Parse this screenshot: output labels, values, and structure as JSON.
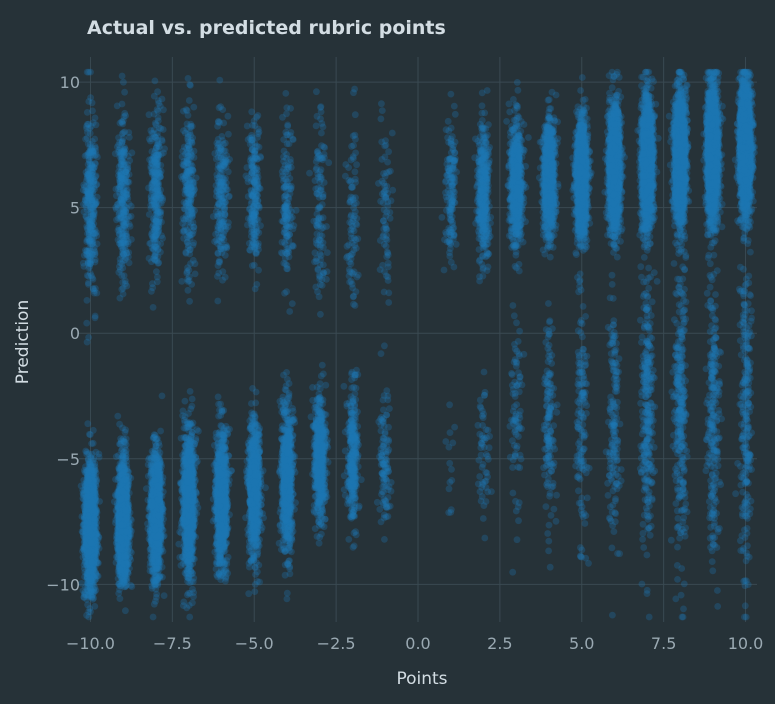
{
  "chart_data": {
    "type": "scatter",
    "title": "Actual vs. predicted rubric points",
    "xlabel": "Points",
    "ylabel": "Prediction",
    "xlim": [
      -10.35,
      10.35
    ],
    "ylim": [
      -11.5,
      11.0
    ],
    "x_ticks": [
      -10.0,
      -7.5,
      -5.0,
      -2.5,
      0.0,
      2.5,
      5.0,
      7.5,
      10.0
    ],
    "x_tick_labels": [
      "−10.0",
      "−7.5",
      "−5.0",
      "−2.5",
      "0.0",
      "2.5",
      "5.0",
      "7.5",
      "10.0"
    ],
    "y_ticks": [
      -10,
      -5,
      0,
      5,
      10
    ],
    "y_tick_labels": [
      "−10",
      "−5",
      "0",
      "5",
      "10"
    ],
    "grid": true,
    "colors": {
      "background": "#263238",
      "point": "#1f77b4",
      "grid": "#3a4a52",
      "tick_text": "#9aa9b2",
      "label_text": "#d3dde3"
    },
    "point_opacity": 0.3,
    "jitter": 0.2,
    "columns": [
      {
        "x": -10,
        "n": 1800,
        "clusters": [
          {
            "mean": -7.6,
            "sd": 1.2,
            "w": 0.82
          },
          {
            "mean": 5.2,
            "sd": 1.9,
            "w": 0.18
          }
        ]
      },
      {
        "x": -9,
        "n": 1500,
        "clusters": [
          {
            "mean": -7.4,
            "sd": 1.2,
            "w": 0.82
          },
          {
            "mean": 5.4,
            "sd": 1.8,
            "w": 0.18
          }
        ]
      },
      {
        "x": -8,
        "n": 1400,
        "clusters": [
          {
            "mean": -7.2,
            "sd": 1.3,
            "w": 0.8
          },
          {
            "mean": 5.6,
            "sd": 1.7,
            "w": 0.2
          }
        ]
      },
      {
        "x": -7,
        "n": 1300,
        "clusters": [
          {
            "mean": -6.8,
            "sd": 1.4,
            "w": 0.8
          },
          {
            "mean": 5.8,
            "sd": 1.6,
            "w": 0.2
          }
        ]
      },
      {
        "x": -6,
        "n": 1200,
        "clusters": [
          {
            "mean": -6.6,
            "sd": 1.3,
            "w": 0.82
          },
          {
            "mean": 5.6,
            "sd": 1.6,
            "w": 0.18
          }
        ]
      },
      {
        "x": -5,
        "n": 1100,
        "clusters": [
          {
            "mean": -6.2,
            "sd": 1.3,
            "w": 0.82
          },
          {
            "mean": 5.6,
            "sd": 1.5,
            "w": 0.18
          }
        ]
      },
      {
        "x": -4,
        "n": 900,
        "clusters": [
          {
            "mean": -5.8,
            "sd": 1.4,
            "w": 0.82
          },
          {
            "mean": 5.2,
            "sd": 1.6,
            "w": 0.18
          }
        ]
      },
      {
        "x": -3,
        "n": 650,
        "clusters": [
          {
            "mean": -5.0,
            "sd": 1.3,
            "w": 0.82
          },
          {
            "mean": 5.0,
            "sd": 1.9,
            "w": 0.18
          }
        ]
      },
      {
        "x": -2,
        "n": 400,
        "clusters": [
          {
            "mean": -4.8,
            "sd": 1.4,
            "w": 0.78
          },
          {
            "mean": 4.6,
            "sd": 2.2,
            "w": 0.22
          }
        ]
      },
      {
        "x": -1,
        "n": 180,
        "clusters": [
          {
            "mean": -5.0,
            "sd": 1.3,
            "w": 0.6
          },
          {
            "mean": 4.8,
            "sd": 2.0,
            "w": 0.4
          }
        ]
      },
      {
        "x": 1,
        "n": 160,
        "clusters": [
          {
            "mean": 5.6,
            "sd": 1.5,
            "w": 0.9
          },
          {
            "mean": -4.5,
            "sd": 1.0,
            "w": 0.1
          }
        ]
      },
      {
        "x": 2,
        "n": 450,
        "clusters": [
          {
            "mean": 5.6,
            "sd": 1.4,
            "w": 0.86
          },
          {
            "mean": -4.5,
            "sd": 1.5,
            "w": 0.14
          }
        ]
      },
      {
        "x": 3,
        "n": 800,
        "clusters": [
          {
            "mean": 6.0,
            "sd": 1.2,
            "w": 0.88
          },
          {
            "mean": -3.5,
            "sd": 2.0,
            "w": 0.12
          }
        ]
      },
      {
        "x": 4,
        "n": 1100,
        "clusters": [
          {
            "mean": 6.2,
            "sd": 1.1,
            "w": 0.88
          },
          {
            "mean": -3.5,
            "sd": 2.2,
            "w": 0.12
          }
        ]
      },
      {
        "x": 5,
        "n": 1400,
        "clusters": [
          {
            "mean": 6.2,
            "sd": 1.2,
            "w": 0.88
          },
          {
            "mean": -3.5,
            "sd": 2.5,
            "w": 0.12
          }
        ]
      },
      {
        "x": 6,
        "n": 1600,
        "clusters": [
          {
            "mean": 6.6,
            "sd": 1.2,
            "w": 0.88
          },
          {
            "mean": -3.5,
            "sd": 2.6,
            "w": 0.12
          }
        ]
      },
      {
        "x": 7,
        "n": 1800,
        "clusters": [
          {
            "mean": 6.8,
            "sd": 1.3,
            "w": 0.86
          },
          {
            "mean": -3.0,
            "sd": 3.0,
            "w": 0.14
          }
        ]
      },
      {
        "x": 8,
        "n": 1900,
        "clusters": [
          {
            "mean": 7.0,
            "sd": 1.3,
            "w": 0.86
          },
          {
            "mean": -3.0,
            "sd": 3.0,
            "w": 0.14
          }
        ]
      },
      {
        "x": 9,
        "n": 2000,
        "clusters": [
          {
            "mean": 7.2,
            "sd": 1.3,
            "w": 0.88
          },
          {
            "mean": -3.0,
            "sd": 3.0,
            "w": 0.12
          }
        ]
      },
      {
        "x": 10,
        "n": 2200,
        "clusters": [
          {
            "mean": 7.4,
            "sd": 1.3,
            "w": 0.88
          },
          {
            "mean": -3.0,
            "sd": 3.2,
            "w": 0.12
          }
        ]
      }
    ]
  }
}
